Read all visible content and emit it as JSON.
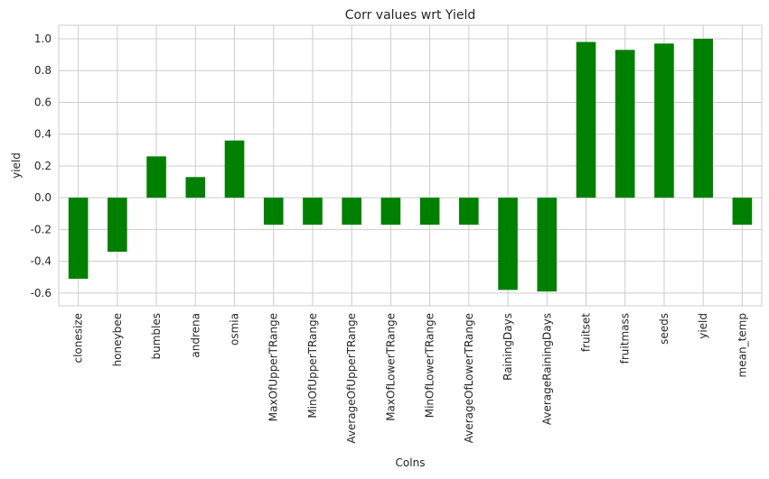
{
  "chart_data": {
    "type": "bar",
    "title": "Corr values wrt Yield",
    "xlabel": "Colns",
    "ylabel": "yield",
    "categories": [
      "clonesize",
      "honeybee",
      "bumbles",
      "andrena",
      "osmia",
      "MaxOfUpperTRange",
      "MinOfUpperTRange",
      "AverageOfUpperTRange",
      "MaxOfLowerTRange",
      "MinOfLowerTRange",
      "AverageOfLowerTRange",
      "RainingDays",
      "AverageRainingDays",
      "fruitset",
      "fruitmass",
      "seeds",
      "yield",
      "mean_temp"
    ],
    "values": [
      -0.51,
      -0.34,
      0.26,
      0.13,
      0.36,
      -0.17,
      -0.17,
      -0.17,
      -0.17,
      -0.17,
      -0.17,
      -0.58,
      -0.59,
      0.98,
      0.93,
      0.97,
      1.0,
      -0.17
    ],
    "ylim": [
      -0.68,
      1.085
    ],
    "yticks": [
      "1.0",
      "0.8",
      "0.6",
      "0.4",
      "0.2",
      "0.0",
      "-0.2",
      "-0.4",
      "-0.6"
    ],
    "ytick_values": [
      1.0,
      0.8,
      0.6,
      0.4,
      0.2,
      0.0,
      -0.2,
      -0.4,
      -0.6
    ],
    "bar_color": "#008000",
    "grid": true,
    "legend": "none"
  }
}
